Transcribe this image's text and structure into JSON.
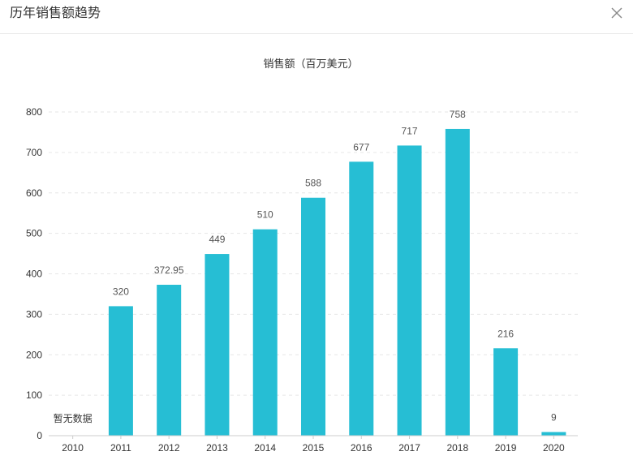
{
  "dialog": {
    "title": "历年销售额趋势",
    "close_icon": "close-icon"
  },
  "colors": {
    "bar": "#26BED4",
    "grid": "#e6e6e6",
    "axis": "#cccccc",
    "text": "#333333",
    "label": "#555555"
  },
  "chart_data": {
    "type": "bar",
    "title": "销售额（百万美元）",
    "xlabel": "",
    "ylabel": "",
    "categories": [
      "2010",
      "2011",
      "2012",
      "2013",
      "2014",
      "2015",
      "2016",
      "2017",
      "2018",
      "2019",
      "2020"
    ],
    "values": [
      null,
      320,
      372.95,
      449,
      510,
      588,
      677,
      717,
      758,
      216,
      9
    ],
    "data_labels": [
      "",
      "320",
      "372.95",
      "449",
      "510",
      "588",
      "677",
      "717",
      "758",
      "216",
      "9"
    ],
    "no_data_text": "暂无数据",
    "ylim": [
      0,
      800
    ],
    "yticks": [
      0,
      100,
      200,
      300,
      400,
      500,
      600,
      700,
      800
    ],
    "grid": true,
    "legend": "none"
  }
}
